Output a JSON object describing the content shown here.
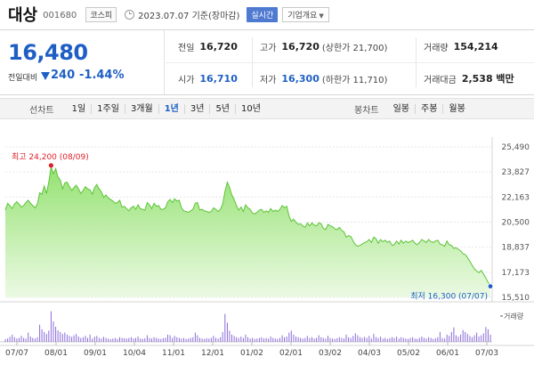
{
  "header": {
    "name": "대상",
    "code": "001680",
    "market": "코스피",
    "date": "2023.07.07 기준(장마감)",
    "realtime": "실시간",
    "overview": "기업개요"
  },
  "quote": {
    "price": "16,480",
    "change_label": "전일대비",
    "change": "240",
    "change_pct": "-1.44%",
    "prev_label": "전일",
    "prev": "16,720",
    "high_label": "고가",
    "high": "16,720",
    "upper_limit": "(상한가 21,700)",
    "volume_label": "거래량",
    "volume": "154,214",
    "open_label": "시가",
    "open": "16,710",
    "low_label": "저가",
    "low": "16,300",
    "lower_limit": "(하한가 11,710)",
    "amount_label": "거래대금",
    "amount": "2,538 백만"
  },
  "toolbar": {
    "line_label": "선차트",
    "periods": [
      "1일",
      "1주일",
      "3개월",
      "1년",
      "3년",
      "5년",
      "10년"
    ],
    "active_period": "1년",
    "candle_label": "봉차트",
    "candles": [
      "일봉",
      "주봉",
      "월봉"
    ]
  },
  "chart_data": {
    "type": "area",
    "y_ticks": [
      "25,490",
      "23,827",
      "22,163",
      "20,500",
      "18,837",
      "17,173",
      "15,510"
    ],
    "ylim": [
      15510,
      25490
    ],
    "x_ticks": [
      "07/07",
      "08/01",
      "09/01",
      "10/04",
      "11/01",
      "12/01",
      "01/02",
      "02/01",
      "03/02",
      "04/03",
      "05/02",
      "06/01",
      "07/03"
    ],
    "annotation_high": "최고 24,200 (08/09)",
    "annotation_low": "최저 16,300 (07/07)",
    "high_value": 24200,
    "low_value": 16300,
    "volume_label": "거래량",
    "series": [
      {
        "values": [
          21300,
          21750,
          21600,
          21400,
          21700,
          21850,
          21700,
          21500,
          21600,
          21800,
          21950,
          21750,
          21600,
          21450,
          21700,
          22450,
          22350,
          22900,
          22400,
          23150,
          24150,
          23700,
          24050,
          23500,
          23300,
          22700,
          23100,
          23150,
          22850,
          22600,
          22800,
          22950,
          22700,
          22400,
          22600,
          22850,
          22700,
          22650,
          22350,
          22800,
          23000,
          22700,
          22500,
          22150,
          22300,
          22100,
          22000,
          21900,
          21750,
          21800,
          21950,
          21500,
          21550,
          21400,
          21250,
          21450,
          21550,
          21350,
          21650,
          21400,
          21350,
          21300,
          21800,
          21650,
          21400,
          21750,
          21550,
          21600,
          21350,
          21350,
          21450,
          21850,
          22000,
          21800,
          22050,
          21900,
          21950,
          21450,
          21250,
          21200,
          21150,
          21250,
          21350,
          21750,
          21800,
          21300,
          21350,
          21250,
          21200,
          21150,
          21200,
          21450,
          21350,
          21200,
          21350,
          21700,
          22550,
          23150,
          22800,
          22300,
          22000,
          21600,
          21300,
          21500,
          21200,
          21650,
          21450,
          21350,
          21100,
          21050,
          21150,
          21300,
          21350,
          21150,
          21250,
          21150,
          21400,
          21200,
          21300,
          21200,
          21350,
          21600,
          21450,
          21550,
          20900,
          20550,
          20700,
          20500,
          20350,
          20400,
          20250,
          20150,
          20450,
          20250,
          20450,
          20300,
          20250,
          20450,
          20400,
          20100,
          20000,
          20350,
          20250,
          20200,
          20050,
          20000,
          20150,
          19950,
          19850,
          19500,
          19600,
          19550,
          19250,
          19000,
          18900,
          18950,
          19050,
          19150,
          19200,
          19350,
          19150,
          19500,
          19400,
          19100,
          19350,
          19200,
          19300,
          19150,
          19250,
          18950,
          19000,
          19250,
          19050,
          19300,
          19100,
          19250,
          19150,
          19200,
          19300,
          19100,
          19000,
          19150,
          19350,
          19250,
          19150,
          19350,
          19200,
          19150,
          19250,
          19300,
          19050,
          19000,
          18900,
          19250,
          19000,
          18950,
          18750,
          18800,
          18700,
          18600,
          18400,
          18350,
          18150,
          17900,
          17650,
          17400,
          17250,
          17150,
          17300,
          17050,
          16800,
          16500,
          16300
        ]
      }
    ],
    "volume": [
      0.08,
      0.1,
      0.15,
      0.22,
      0.14,
      0.1,
      0.12,
      0.18,
      0.12,
      0.1,
      0.28,
      0.16,
      0.12,
      0.1,
      0.14,
      0.52,
      0.38,
      0.3,
      0.24,
      0.34,
      0.93,
      0.62,
      0.46,
      0.35,
      0.3,
      0.24,
      0.28,
      0.22,
      0.18,
      0.15,
      0.2,
      0.24,
      0.16,
      0.12,
      0.14,
      0.18,
      0.12,
      0.22,
      0.1,
      0.16,
      0.18,
      0.12,
      0.1,
      0.15,
      0.12,
      0.1,
      0.08,
      0.1,
      0.12,
      0.09,
      0.14,
      0.12,
      0.11,
      0.1,
      0.12,
      0.14,
      0.1,
      0.12,
      0.16,
      0.1,
      0.09,
      0.11,
      0.2,
      0.12,
      0.1,
      0.14,
      0.12,
      0.1,
      0.09,
      0.11,
      0.13,
      0.22,
      0.2,
      0.12,
      0.18,
      0.14,
      0.12,
      0.1,
      0.12,
      0.09,
      0.1,
      0.12,
      0.14,
      0.28,
      0.2,
      0.12,
      0.1,
      0.09,
      0.11,
      0.1,
      0.12,
      0.18,
      0.12,
      0.1,
      0.14,
      0.3,
      0.85,
      0.58,
      0.34,
      0.22,
      0.18,
      0.14,
      0.12,
      0.16,
      0.12,
      0.22,
      0.14,
      0.1,
      0.12,
      0.09,
      0.1,
      0.12,
      0.14,
      0.1,
      0.12,
      0.1,
      0.16,
      0.12,
      0.1,
      0.09,
      0.12,
      0.2,
      0.14,
      0.16,
      0.28,
      0.34,
      0.22,
      0.16,
      0.14,
      0.12,
      0.1,
      0.12,
      0.18,
      0.12,
      0.14,
      0.1,
      0.12,
      0.2,
      0.14,
      0.12,
      0.1,
      0.18,
      0.12,
      0.1,
      0.09,
      0.11,
      0.14,
      0.12,
      0.1,
      0.22,
      0.14,
      0.12,
      0.18,
      0.26,
      0.2,
      0.14,
      0.12,
      0.15,
      0.12,
      0.18,
      0.1,
      0.24,
      0.14,
      0.12,
      0.16,
      0.1,
      0.12,
      0.09,
      0.11,
      0.14,
      0.12,
      0.16,
      0.1,
      0.14,
      0.12,
      0.1,
      0.09,
      0.12,
      0.14,
      0.1,
      0.09,
      0.12,
      0.16,
      0.12,
      0.1,
      0.14,
      0.12,
      0.09,
      0.11,
      0.14,
      0.3,
      0.12,
      0.1,
      0.22,
      0.18,
      0.3,
      0.44,
      0.2,
      0.16,
      0.22,
      0.36,
      0.3,
      0.24,
      0.18,
      0.14,
      0.2,
      0.28,
      0.16,
      0.2,
      0.26,
      0.45,
      0.38,
      0.22
    ]
  }
}
